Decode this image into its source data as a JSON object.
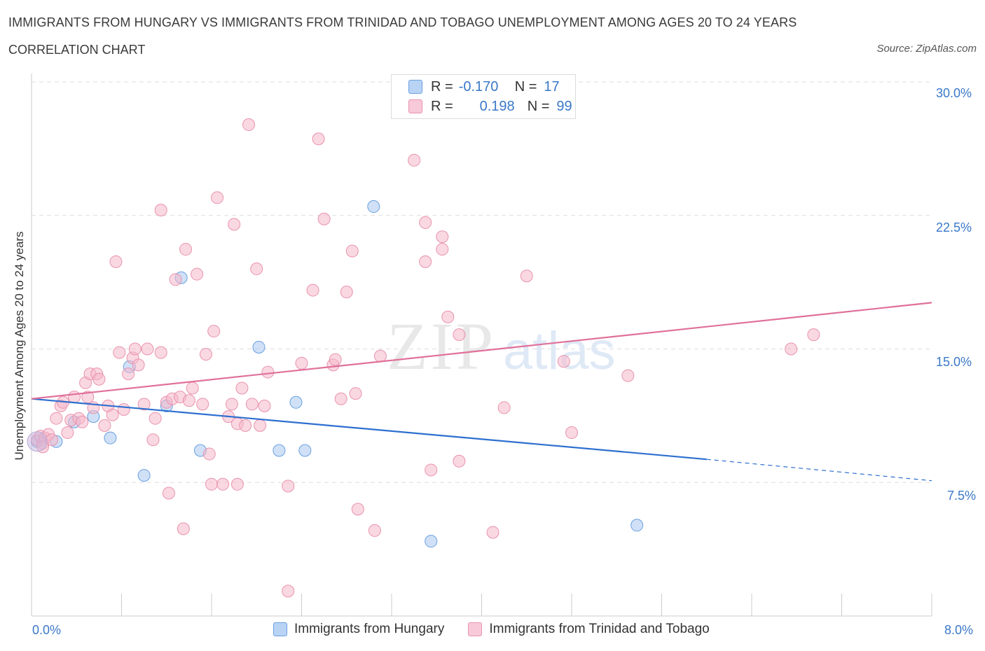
{
  "header": {
    "title": "IMMIGRANTS FROM HUNGARY VS IMMIGRANTS FROM TRINIDAD AND TOBAGO UNEMPLOYMENT AMONG AGES 20 TO 24 YEARS",
    "subtitle": "CORRELATION CHART",
    "source": "Source: ZipAtlas.com"
  },
  "watermark": {
    "zip": "ZIP",
    "atlas": "atlas"
  },
  "legend": {
    "rows": [
      {
        "r_label": "R =",
        "r_value": "-0.170",
        "n_label": "N =",
        "n_value": "17",
        "color": "#a9c8f0"
      },
      {
        "r_label": "R =",
        "r_value": "0.198",
        "n_label": "N =",
        "n_value": "99",
        "color": "#f5b8cb"
      }
    ]
  },
  "axes": {
    "ylabel": "Unemployment Among Ages 20 to 24 years",
    "x_left": "0.0%",
    "x_right": "8.0%",
    "y_ticks": [
      "30.0%",
      "22.5%",
      "15.0%",
      "7.5%"
    ]
  },
  "chart_data": {
    "type": "scatter",
    "xlabel": "",
    "ylabel": "Unemployment Among Ages 20 to 24 years",
    "xlim": [
      0,
      8
    ],
    "ylim": [
      0,
      30
    ],
    "grid": true,
    "legend_position": "bottom",
    "series": [
      {
        "name": "Immigrants from Hungary",
        "color": "#a9c8f0",
        "stroke": "#6a9fe0",
        "trend": {
          "x": [
            0,
            6.0
          ],
          "y": [
            12.2,
            8.8
          ],
          "dashed_to": [
            8.0,
            7.6
          ],
          "color": "#2d6fcf"
        },
        "points": [
          [
            0.05,
            9.8
          ],
          [
            0.22,
            9.8
          ],
          [
            0.38,
            10.9
          ],
          [
            0.55,
            11.2
          ],
          [
            0.7,
            10.0
          ],
          [
            0.87,
            14.0
          ],
          [
            1.0,
            7.9
          ],
          [
            1.2,
            11.8
          ],
          [
            1.33,
            19.0
          ],
          [
            1.5,
            9.3
          ],
          [
            2.02,
            15.1
          ],
          [
            2.2,
            9.3
          ],
          [
            2.35,
            12.0
          ],
          [
            2.43,
            9.3
          ],
          [
            3.04,
            23.0
          ],
          [
            3.55,
            4.2
          ],
          [
            5.38,
            5.1
          ]
        ]
      },
      {
        "name": "Immigrants from Trinidad and Tobago",
        "color": "#f5b8cb",
        "stroke": "#e893ae",
        "trend": {
          "x": [
            0,
            8.0
          ],
          "y": [
            12.2,
            17.6
          ],
          "color": "#e0709a"
        },
        "points": [
          [
            0.05,
            9.9
          ],
          [
            0.08,
            10.1
          ],
          [
            0.1,
            9.7
          ],
          [
            0.12,
            10.0
          ],
          [
            0.15,
            10.2
          ],
          [
            0.18,
            9.9
          ],
          [
            0.22,
            11.1
          ],
          [
            0.26,
            11.8
          ],
          [
            0.28,
            12.0
          ],
          [
            0.32,
            10.3
          ],
          [
            0.35,
            11.0
          ],
          [
            0.38,
            12.3
          ],
          [
            0.42,
            11.1
          ],
          [
            0.45,
            10.9
          ],
          [
            0.48,
            13.1
          ],
          [
            0.5,
            12.3
          ],
          [
            0.52,
            13.6
          ],
          [
            0.55,
            11.7
          ],
          [
            0.58,
            13.6
          ],
          [
            0.6,
            13.3
          ],
          [
            0.65,
            10.7
          ],
          [
            0.68,
            11.8
          ],
          [
            0.72,
            11.3
          ],
          [
            0.75,
            19.9
          ],
          [
            0.78,
            14.8
          ],
          [
            0.82,
            11.6
          ],
          [
            0.86,
            13.6
          ],
          [
            0.9,
            14.5
          ],
          [
            0.92,
            15.0
          ],
          [
            0.95,
            14.1
          ],
          [
            1.0,
            11.9
          ],
          [
            1.03,
            15.0
          ],
          [
            1.08,
            9.9
          ],
          [
            1.1,
            11.1
          ],
          [
            1.15,
            14.8
          ],
          [
            1.15,
            22.8
          ],
          [
            1.2,
            12.0
          ],
          [
            1.22,
            6.9
          ],
          [
            1.25,
            12.2
          ],
          [
            1.28,
            18.9
          ],
          [
            1.32,
            12.3
          ],
          [
            1.35,
            4.9
          ],
          [
            1.37,
            20.6
          ],
          [
            1.4,
            12.1
          ],
          [
            1.43,
            12.8
          ],
          [
            1.47,
            19.2
          ],
          [
            1.52,
            11.9
          ],
          [
            1.55,
            14.7
          ],
          [
            1.58,
            9.1
          ],
          [
            1.6,
            7.4
          ],
          [
            1.62,
            16.0
          ],
          [
            1.65,
            23.5
          ],
          [
            1.7,
            7.4
          ],
          [
            1.75,
            11.2
          ],
          [
            1.78,
            11.9
          ],
          [
            1.8,
            22.0
          ],
          [
            1.83,
            10.8
          ],
          [
            1.83,
            7.4
          ],
          [
            1.87,
            12.8
          ],
          [
            1.9,
            10.7
          ],
          [
            1.93,
            27.6
          ],
          [
            1.96,
            11.9
          ],
          [
            2.0,
            19.5
          ],
          [
            2.03,
            10.7
          ],
          [
            2.07,
            11.8
          ],
          [
            2.1,
            13.7
          ],
          [
            2.28,
            7.3
          ],
          [
            2.28,
            1.4
          ],
          [
            2.4,
            14.2
          ],
          [
            2.5,
            18.3
          ],
          [
            2.55,
            26.8
          ],
          [
            2.6,
            22.3
          ],
          [
            2.68,
            14.1
          ],
          [
            2.7,
            14.4
          ],
          [
            2.75,
            12.2
          ],
          [
            2.8,
            18.2
          ],
          [
            2.85,
            20.5
          ],
          [
            2.88,
            12.5
          ],
          [
            2.9,
            6.0
          ],
          [
            3.05,
            4.8
          ],
          [
            3.1,
            14.6
          ],
          [
            3.4,
            25.6
          ],
          [
            3.5,
            22.1
          ],
          [
            3.5,
            19.9
          ],
          [
            3.55,
            8.2
          ],
          [
            3.65,
            20.6
          ],
          [
            3.65,
            21.3
          ],
          [
            3.7,
            16.8
          ],
          [
            3.8,
            8.7
          ],
          [
            3.8,
            15.8
          ],
          [
            4.1,
            4.7
          ],
          [
            4.2,
            11.7
          ],
          [
            4.4,
            19.1
          ],
          [
            4.73,
            14.3
          ],
          [
            4.8,
            10.3
          ],
          [
            5.3,
            13.5
          ],
          [
            6.75,
            15.0
          ],
          [
            6.95,
            15.8
          ],
          [
            0.1,
            9.5
          ]
        ]
      }
    ]
  },
  "bottom_legend": [
    {
      "label": "Immigrants from Hungary",
      "color": "#a9c8f0"
    },
    {
      "label": "Immigrants from Trinidad and Tobago",
      "color": "#f5b8cb"
    }
  ]
}
